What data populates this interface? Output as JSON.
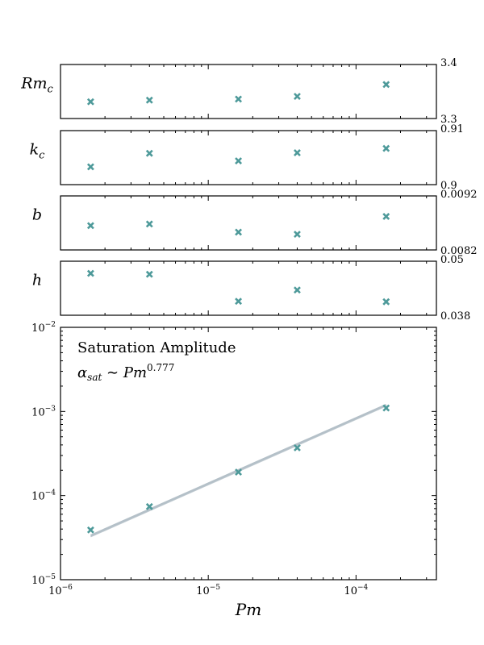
{
  "chart_data": [
    {
      "type": "scatter",
      "panel_label_main": "Rm",
      "panel_label_sub": "c",
      "xscale": "log",
      "xlim": [
        1e-06,
        0.00035
      ],
      "ylim": [
        3.3,
        3.4
      ],
      "ytick_labels": [
        "3.3",
        "3.4"
      ],
      "x": [
        1.6e-06,
        4e-06,
        1.6e-05,
        4e-05,
        0.00016
      ],
      "values": [
        3.331,
        3.334,
        3.336,
        3.341,
        3.363
      ],
      "marker_color": "#4e9a9a"
    },
    {
      "type": "scatter",
      "panel_label_main": "k",
      "panel_label_sub": "c",
      "xscale": "log",
      "xlim": [
        1e-06,
        0.00035
      ],
      "ylim": [
        0.9,
        0.91
      ],
      "ytick_labels": [
        "0.9",
        "0.91"
      ],
      "x": [
        1.6e-06,
        4e-06,
        1.6e-05,
        4e-05,
        0.00016
      ],
      "values": [
        0.9033,
        0.9058,
        0.9044,
        0.9059,
        0.9067
      ],
      "marker_color": "#4e9a9a"
    },
    {
      "type": "scatter",
      "panel_label_main": "b",
      "panel_label_sub": "",
      "xscale": "log",
      "xlim": [
        1e-06,
        0.00035
      ],
      "ylim": [
        0.0082,
        0.0092
      ],
      "ytick_labels": [
        "0.0082",
        "0.0092"
      ],
      "x": [
        1.6e-06,
        4e-06,
        1.6e-05,
        4e-05,
        0.00016
      ],
      "values": [
        0.00865,
        0.00868,
        0.00853,
        0.00849,
        0.00882
      ],
      "marker_color": "#4e9a9a"
    },
    {
      "type": "scatter",
      "panel_label_main": "h",
      "panel_label_sub": "",
      "xscale": "log",
      "xlim": [
        1e-06,
        0.00035
      ],
      "ylim": [
        0.038,
        0.05
      ],
      "ytick_labels": [
        "0.038",
        "0.05"
      ],
      "x": [
        1.6e-06,
        4e-06,
        1.6e-05,
        4e-05,
        0.00016
      ],
      "values": [
        0.0473,
        0.0471,
        0.0411,
        0.0436,
        0.041
      ],
      "marker_color": "#4e9a9a"
    },
    {
      "type": "scatter",
      "xscale": "log",
      "yscale": "log",
      "xlim": [
        1e-06,
        0.00035
      ],
      "ylim": [
        1e-05,
        0.01
      ],
      "x_tick_exponents": [
        "-6",
        "-5",
        "-4"
      ],
      "y_tick_exponents": [
        "-5",
        "-4",
        "-3",
        "-2"
      ],
      "tick_base": "10",
      "xlabel": "Pm",
      "annotation_title": "Saturation Amplitude",
      "annotation_formula_lhs": "α",
      "annotation_formula_lhs_sub": "sat",
      "annotation_formula_op": " ∼ ",
      "annotation_formula_rhs": "Pm",
      "annotation_formula_exp": "0.777",
      "x": [
        1.6e-06,
        4e-06,
        1.6e-05,
        4e-05,
        0.00016
      ],
      "values": [
        3.9e-05,
        7.4e-05,
        0.00019,
        0.00037,
        0.0011
      ],
      "fit_exponent": 0.777,
      "fit_color": "#b4c0c8",
      "marker_color": "#4e9a9a"
    }
  ]
}
